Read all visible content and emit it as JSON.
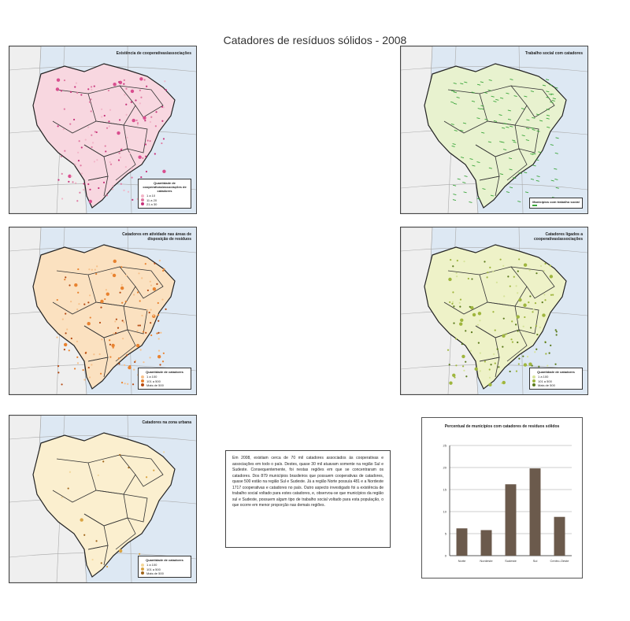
{
  "page": {
    "title": "Catadores de resíduos sólidos -  2008"
  },
  "maps": [
    {
      "id": "coop",
      "title": "Existência de cooperativas/associações",
      "legend_title": "Quantidade de cooperativas/associações de catadores",
      "legend_items": [
        {
          "label": "1 a 10",
          "color": "#f2b6c8"
        },
        {
          "label": "11 a 20",
          "color": "#e07aa2"
        },
        {
          "label": "21 a 30",
          "color": "#c7327a"
        }
      ],
      "dot_color": "#d94e8f",
      "fill_color": "#f8d7e0"
    },
    {
      "id": "social",
      "title": "Trabalho social com catadores",
      "legend_title": "Municípios com trabalho social",
      "legend_items": [
        {
          "label": "",
          "color": "#3aa63a"
        }
      ],
      "dot_color": "#3aa63a",
      "fill_color": "#e8f2cf"
    },
    {
      "id": "areas",
      "title": "Catadores em atividade nas áreas de disposição de resíduos",
      "legend_title": "Quantidade de catadores",
      "legend_items": [
        {
          "label": "1 a 100",
          "color": "#f6c08a"
        },
        {
          "label": "101 a 500",
          "color": "#e8822f"
        },
        {
          "label": "Mais de 500",
          "color": "#b54a12"
        }
      ],
      "dot_color": "#e8822f",
      "fill_color": "#fbe1c0"
    },
    {
      "id": "prefeitura",
      "title": "Catadores ligados a cooperativas/associações",
      "legend_title": "Quantidade de catadores",
      "legend_items": [
        {
          "label": "1 a 100",
          "color": "#d6e39a"
        },
        {
          "label": "101 a 500",
          "color": "#9fb63e"
        },
        {
          "label": "Mais de 500",
          "color": "#5a7a1c"
        }
      ],
      "dot_color": "#9fb63e",
      "fill_color": "#eef2c8"
    },
    {
      "id": "zona-urbana",
      "title": "Catadores na zona urbana",
      "legend_title": "Quantidade de catadores",
      "legend_items": [
        {
          "label": "1 a 100",
          "color": "#f3d79a"
        },
        {
          "label": "101 a 500",
          "color": "#d9a443"
        },
        {
          "label": "Mais de 500",
          "color": "#a0661c"
        }
      ],
      "dot_color": "#d9a443",
      "fill_color": "#fbefcf"
    }
  ],
  "text_box": {
    "content": "Em 2008, existiam cerca de 70 mil catadores associados às cooperativas e associações em todo o país. Destes, quase 30 mil atuavam somente na região Sul e Sudeste. Consequentemente, foi nestas regiões em que se concentraram os catadores. Dos 879 municípios brasileiros que possuem cooperativas de catadores, quase 500 estão na região Sul e Sudeste. Já a região Norte possuía 481 e a Nordeste 1717 cooperativas e catadores no país. Outro aspecto investigado foi a existência de trabalho social voltado para estes catadores, e, observou-se que municípios da região sul e Sudeste, possuem algum tipo de trabalho social voltado para esta população, o que ocorre em menor proporção nas demais regiões."
  },
  "chart_data": {
    "type": "bar",
    "title": "Percentual de municípios com catadores de resíduos sólidos",
    "categories": [
      "Norte",
      "Nordeste",
      "Sudeste",
      "Sul",
      "Centro-Oeste"
    ],
    "values": [
      6.2,
      5.8,
      16.2,
      19.8,
      8.8
    ],
    "ylim": [
      0,
      25
    ],
    "yticks": [
      0,
      5,
      10,
      15,
      20,
      25
    ],
    "bar_color": "#6b5a4c",
    "grid": true
  }
}
